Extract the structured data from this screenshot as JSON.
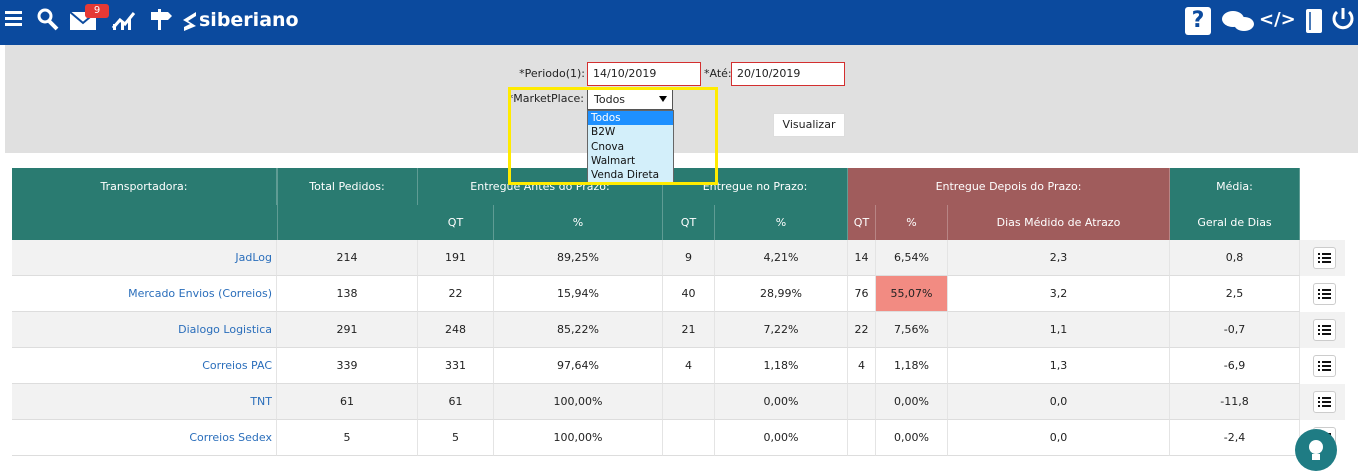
{
  "header": {
    "logo": "siberiano",
    "mail_badge": "9",
    "help": "?",
    "code": "</>"
  },
  "filters": {
    "period_label": "*Periodo(1):",
    "period_from": "14/10/2019",
    "until_label": "*Até:",
    "period_to": "20/10/2019",
    "marketplace_label": "*MarketPlace:",
    "marketplace_value": "Todos",
    "marketplace_options": [
      "Todos",
      "B2W",
      "Cnova",
      "Walmart",
      "Venda Direta"
    ],
    "submit": "Visualizar"
  },
  "table": {
    "headers_top": [
      "Transportadora:",
      "Total Pedidos:",
      "Entregue Antes do Prazo:",
      "Entregue no Prazo:",
      "Entregue Depois do Prazo:",
      "Média:"
    ],
    "headers_sub": [
      "QT",
      "%",
      "QT",
      "%",
      "QT",
      "%",
      "Dias Médido de Atrazo",
      "Geral de Dias"
    ],
    "rows": [
      [
        "JadLog",
        "214",
        "191",
        "89,25%",
        "9",
        "4,21%",
        "14",
        "6,54%",
        "2,3",
        "0,8"
      ],
      [
        "Mercado Envios (Correios)",
        "138",
        "22",
        "15,94%",
        "40",
        "28,99%",
        "76",
        "55,07%",
        "3,2",
        "2,5"
      ],
      [
        "Dialogo Logistica",
        "291",
        "248",
        "85,22%",
        "21",
        "7,22%",
        "22",
        "7,56%",
        "1,1",
        "-0,7"
      ],
      [
        "Correios PAC",
        "339",
        "331",
        "97,64%",
        "4",
        "1,18%",
        "4",
        "1,18%",
        "1,3",
        "-6,9"
      ],
      [
        "TNT",
        "61",
        "61",
        "100,00%",
        null,
        "0,00%",
        null,
        "0,00%",
        "0,0",
        "-11,8"
      ],
      [
        "Correios Sedex",
        "5",
        "5",
        "100,00%",
        null,
        "0,00%",
        null,
        "0,00%",
        "0,0",
        "-2,4"
      ]
    ]
  }
}
